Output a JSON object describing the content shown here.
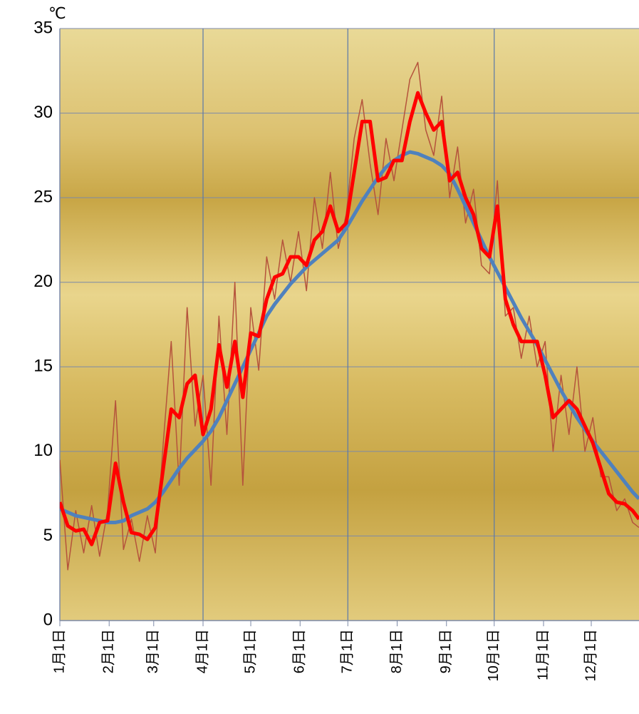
{
  "chart_data": {
    "type": "line",
    "unit": "℃",
    "x": [
      1,
      6,
      11,
      16,
      21,
      26,
      31,
      36,
      41,
      46,
      51,
      56,
      61,
      66,
      71,
      76,
      81,
      86,
      91,
      96,
      101,
      106,
      111,
      116,
      121,
      126,
      131,
      136,
      141,
      146,
      151,
      156,
      161,
      166,
      171,
      176,
      181,
      186,
      191,
      196,
      201,
      206,
      211,
      216,
      221,
      226,
      231,
      236,
      241,
      246,
      251,
      256,
      261,
      266,
      271,
      276,
      281,
      286,
      291,
      296,
      301,
      306,
      311,
      316,
      321,
      326,
      331,
      336,
      341,
      346,
      351,
      356,
      361,
      365
    ],
    "series": [
      {
        "color": "#b5533c",
        "width": 1.5,
        "values": [
          9.5,
          3.0,
          6.5,
          4.0,
          6.8,
          3.8,
          6.5,
          13.0,
          4.2,
          6.0,
          3.5,
          6.2,
          4.0,
          10.5,
          16.5,
          8.0,
          18.5,
          11.5,
          14.5,
          8.0,
          18.0,
          11.0,
          20.0,
          8.0,
          18.5,
          14.8,
          21.5,
          19.0,
          22.5,
          20.0,
          23.0,
          19.5,
          25.0,
          22.0,
          26.5,
          22.0,
          24.0,
          28.5,
          30.8,
          27.0,
          24.0,
          28.5,
          26.0,
          29.0,
          32.0,
          33.0,
          29.0,
          27.5,
          31.0,
          25.0,
          28.0,
          23.5,
          25.5,
          21.0,
          20.5,
          26.0,
          18.0,
          18.5,
          15.5,
          18.0,
          15.0,
          16.5,
          10.0,
          14.5,
          11.0,
          15.0,
          10.0,
          12.0,
          8.5,
          8.5,
          6.5,
          7.2,
          5.8,
          5.5
        ]
      },
      {
        "color": "#4f81bd",
        "width": 5,
        "values": [
          6.6,
          6.4,
          6.2,
          6.1,
          6.0,
          5.9,
          5.8,
          5.8,
          5.9,
          6.2,
          6.4,
          6.6,
          7.0,
          7.6,
          8.3,
          9.0,
          9.6,
          10.1,
          10.6,
          11.2,
          12.0,
          13.0,
          14.0,
          15.0,
          16.0,
          17.0,
          18.0,
          18.7,
          19.3,
          19.9,
          20.4,
          20.9,
          21.3,
          21.7,
          22.1,
          22.5,
          23.2,
          24.0,
          24.8,
          25.5,
          26.2,
          26.8,
          27.2,
          27.5,
          27.7,
          27.6,
          27.4,
          27.2,
          26.9,
          26.4,
          25.5,
          24.5,
          23.5,
          22.5,
          21.5,
          20.6,
          19.7,
          18.8,
          17.9,
          17.1,
          16.3,
          15.4,
          14.5,
          13.6,
          12.8,
          12.0,
          11.3,
          10.6,
          10.0,
          9.4,
          8.8,
          8.2,
          7.6,
          7.2
        ]
      },
      {
        "color": "#ff0000",
        "width": 5,
        "values": [
          7.0,
          5.6,
          5.3,
          5.4,
          4.5,
          5.8,
          5.9,
          9.3,
          7.0,
          5.2,
          5.1,
          4.8,
          5.5,
          9.0,
          12.5,
          12.0,
          14.0,
          14.5,
          11.0,
          12.5,
          16.3,
          13.8,
          16.5,
          13.2,
          17.0,
          16.8,
          19.0,
          20.3,
          20.5,
          21.5,
          21.5,
          21.0,
          22.5,
          23.0,
          24.5,
          23.0,
          23.5,
          26.5,
          29.5,
          29.5,
          26.0,
          26.2,
          27.2,
          27.2,
          29.5,
          31.2,
          30.0,
          29.0,
          29.5,
          26.0,
          26.5,
          25.0,
          24.0,
          22.0,
          21.5,
          24.5,
          19.0,
          17.5,
          16.5,
          16.5,
          16.5,
          14.5,
          12.0,
          12.5,
          13.0,
          12.5,
          11.5,
          10.5,
          9.0,
          7.5,
          7.0,
          6.9,
          6.5,
          6.0
        ]
      }
    ],
    "xlim": [
      1,
      365
    ],
    "xticks": [
      {
        "value": 1,
        "label": "1月1日"
      },
      {
        "value": 32,
        "label": "2月1日"
      },
      {
        "value": 60,
        "label": "3月1日"
      },
      {
        "value": 91,
        "label": "4月1日"
      },
      {
        "value": 121,
        "label": "5月1日"
      },
      {
        "value": 152,
        "label": "6月1日"
      },
      {
        "value": 182,
        "label": "7月1日"
      },
      {
        "value": 213,
        "label": "8月1日"
      },
      {
        "value": 244,
        "label": "9月1日"
      },
      {
        "value": 274,
        "label": "10月1日"
      },
      {
        "value": 305,
        "label": "11月1日"
      },
      {
        "value": 335,
        "label": "12月1日"
      }
    ],
    "ylim": [
      0,
      35
    ],
    "yticks": [
      0,
      5,
      10,
      15,
      20,
      25,
      30,
      35
    ],
    "grid": true
  }
}
